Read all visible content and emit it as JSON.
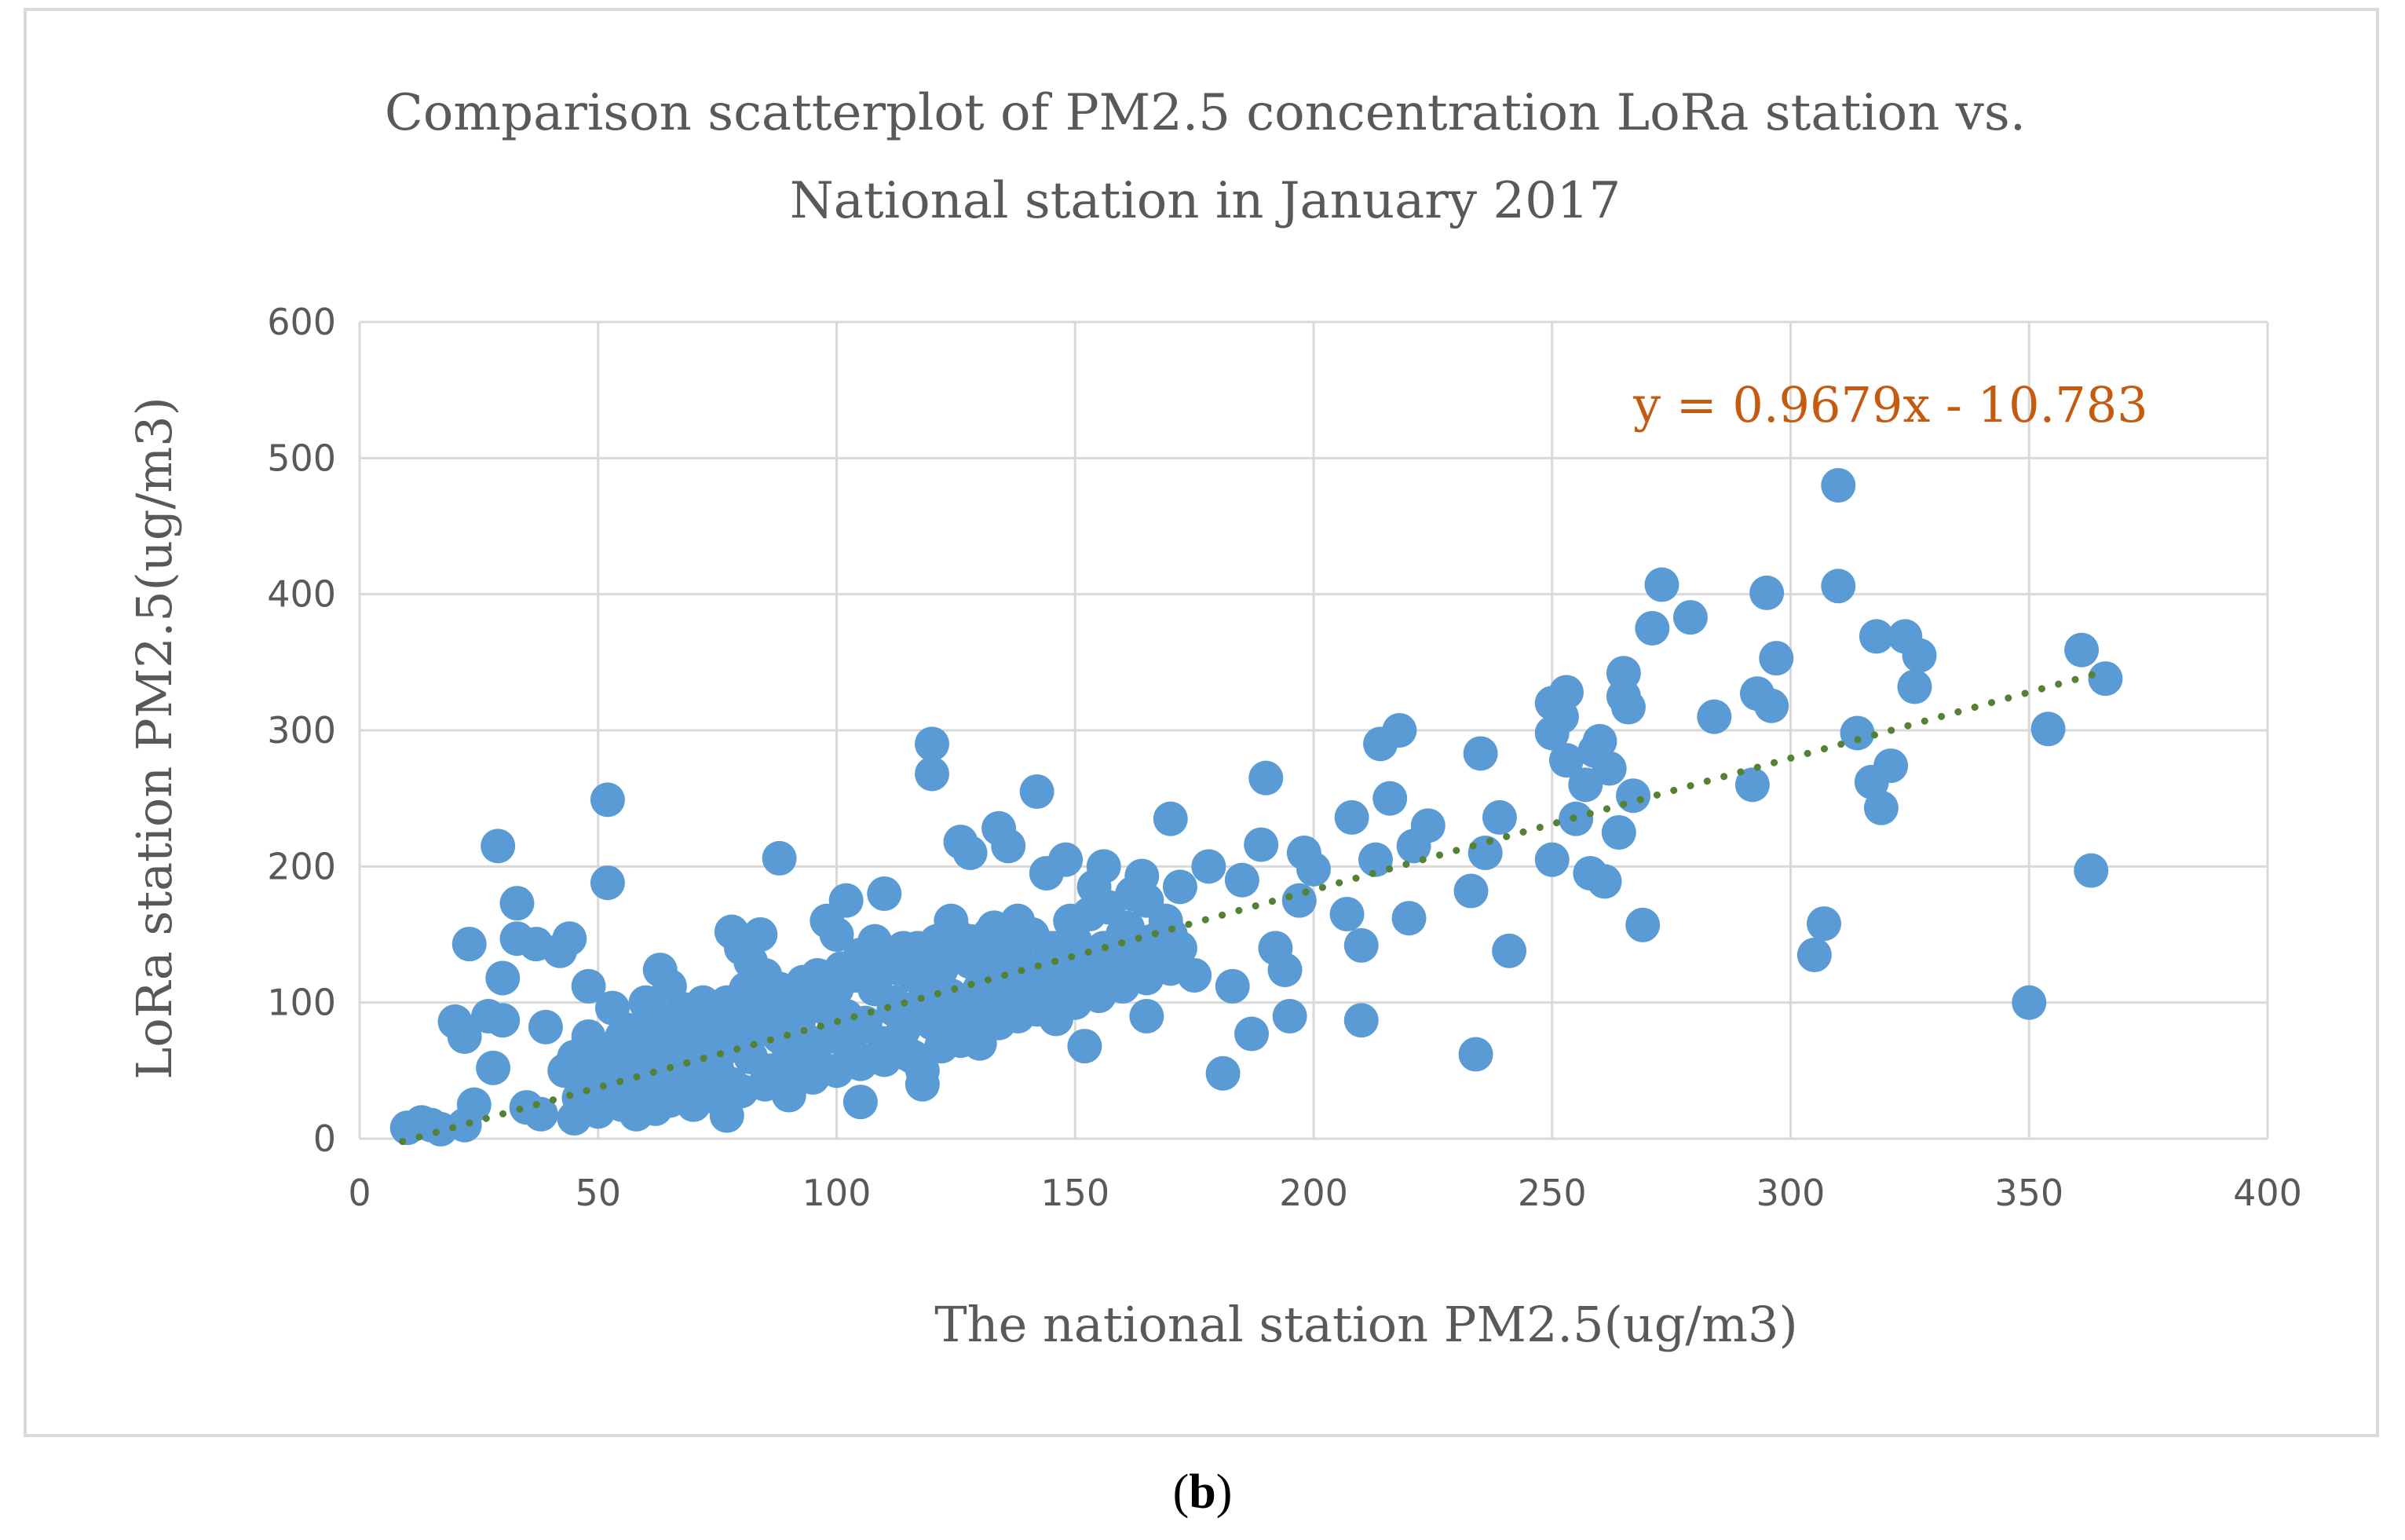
{
  "chart_data": {
    "type": "scatter",
    "title_lines": [
      "Comparison scatterplot of PM2.5 concentration LoRa station vs.",
      "National station in January 2017"
    ],
    "xlabel": "The national station PM2.5(ug/m3)",
    "ylabel": "LoRa station PM2.5(ug/m3)",
    "xlim": [
      0,
      400
    ],
    "ylim": [
      0,
      600
    ],
    "x_ticks": [
      "0",
      "50",
      "100",
      "150",
      "200",
      "250",
      "300",
      "350",
      "400"
    ],
    "y_ticks": [
      "0",
      "100",
      "200",
      "300",
      "400",
      "500",
      "600"
    ],
    "grid": true,
    "point_color": "#5b9bd5",
    "trendline": {
      "equation_label": "y = 0.9679x - 10.783",
      "slope": 0.9679,
      "intercept": -10.783,
      "x_range": [
        9,
        366
      ],
      "color": "#548235"
    },
    "points": [
      [
        10,
        8
      ],
      [
        13,
        12
      ],
      [
        15,
        10
      ],
      [
        17,
        7
      ],
      [
        22,
        10
      ],
      [
        24,
        25
      ],
      [
        20,
        86
      ],
      [
        22,
        75
      ],
      [
        23,
        143
      ],
      [
        27,
        90
      ],
      [
        28,
        52
      ],
      [
        29,
        215
      ],
      [
        30,
        118
      ],
      [
        30,
        87
      ],
      [
        33,
        173
      ],
      [
        33,
        147
      ],
      [
        35,
        23
      ],
      [
        37,
        143
      ],
      [
        38,
        18
      ],
      [
        39,
        82
      ],
      [
        42,
        138
      ],
      [
        43,
        50
      ],
      [
        44,
        147
      ],
      [
        45,
        15
      ],
      [
        48,
        112
      ],
      [
        50,
        30
      ],
      [
        52,
        249
      ],
      [
        52,
        188
      ],
      [
        53,
        96
      ],
      [
        55,
        75
      ],
      [
        57,
        40
      ],
      [
        60,
        65
      ],
      [
        62,
        90
      ],
      [
        63,
        124
      ],
      [
        65,
        112
      ],
      [
        66,
        55
      ],
      [
        68,
        30
      ],
      [
        70,
        95
      ],
      [
        72,
        70
      ],
      [
        75,
        50
      ],
      [
        77,
        17
      ],
      [
        78,
        152
      ],
      [
        80,
        140
      ],
      [
        82,
        130
      ],
      [
        84,
        150
      ],
      [
        86,
        80
      ],
      [
        88,
        206
      ],
      [
        90,
        42
      ],
      [
        92,
        95
      ],
      [
        94,
        60
      ],
      [
        96,
        120
      ],
      [
        98,
        160
      ],
      [
        100,
        150
      ],
      [
        102,
        175
      ],
      [
        104,
        80
      ],
      [
        105,
        27
      ],
      [
        108,
        145
      ],
      [
        110,
        180
      ],
      [
        112,
        100
      ],
      [
        114,
        140
      ],
      [
        116,
        60
      ],
      [
        118,
        40
      ],
      [
        120,
        290
      ],
      [
        120,
        268
      ],
      [
        122,
        110
      ],
      [
        124,
        160
      ],
      [
        126,
        218
      ],
      [
        128,
        210
      ],
      [
        130,
        70
      ],
      [
        132,
        150
      ],
      [
        134,
        228
      ],
      [
        136,
        215
      ],
      [
        138,
        160
      ],
      [
        140,
        100
      ],
      [
        142,
        255
      ],
      [
        144,
        195
      ],
      [
        146,
        140
      ],
      [
        148,
        205
      ],
      [
        150,
        120
      ],
      [
        152,
        68
      ],
      [
        154,
        185
      ],
      [
        156,
        200
      ],
      [
        158,
        130
      ],
      [
        160,
        150
      ],
      [
        162,
        180
      ],
      [
        164,
        193
      ],
      [
        165,
        90
      ],
      [
        168,
        140
      ],
      [
        170,
        235
      ],
      [
        172,
        185
      ],
      [
        175,
        120
      ],
      [
        178,
        200
      ],
      [
        181,
        48
      ],
      [
        183,
        112
      ],
      [
        185,
        190
      ],
      [
        187,
        77
      ],
      [
        189,
        216
      ],
      [
        190,
        265
      ],
      [
        192,
        140
      ],
      [
        194,
        124
      ],
      [
        195,
        90
      ],
      [
        197,
        175
      ],
      [
        198,
        210
      ],
      [
        200,
        198
      ],
      [
        207,
        165
      ],
      [
        208,
        236
      ],
      [
        210,
        142
      ],
      [
        210,
        87
      ],
      [
        213,
        205
      ],
      [
        214,
        290
      ],
      [
        216,
        250
      ],
      [
        218,
        300
      ],
      [
        220,
        162
      ],
      [
        221,
        215
      ],
      [
        224,
        230
      ],
      [
        233,
        182
      ],
      [
        234,
        62
      ],
      [
        235,
        283
      ],
      [
        236,
        210
      ],
      [
        239,
        236
      ],
      [
        241,
        138
      ],
      [
        250,
        320
      ],
      [
        250,
        298
      ],
      [
        250,
        205
      ],
      [
        252,
        310
      ],
      [
        253,
        328
      ],
      [
        253,
        278
      ],
      [
        255,
        235
      ],
      [
        257,
        260
      ],
      [
        258,
        195
      ],
      [
        259,
        285
      ],
      [
        260,
        292
      ],
      [
        261,
        189
      ],
      [
        262,
        272
      ],
      [
        264,
        225
      ],
      [
        265,
        342
      ],
      [
        265,
        325
      ],
      [
        266,
        317
      ],
      [
        267,
        252
      ],
      [
        269,
        157
      ],
      [
        271,
        375
      ],
      [
        273,
        407
      ],
      [
        279,
        383
      ],
      [
        284,
        310
      ],
      [
        292,
        260
      ],
      [
        293,
        327
      ],
      [
        295,
        401
      ],
      [
        296,
        318
      ],
      [
        297,
        353
      ],
      [
        305,
        135
      ],
      [
        307,
        158
      ],
      [
        310,
        480
      ],
      [
        310,
        406
      ],
      [
        314,
        298
      ],
      [
        317,
        262
      ],
      [
        318,
        369
      ],
      [
        319,
        243
      ],
      [
        321,
        274
      ],
      [
        324,
        369
      ],
      [
        326,
        332
      ],
      [
        327,
        355
      ],
      [
        350,
        100
      ],
      [
        354,
        301
      ],
      [
        361,
        359
      ],
      [
        363,
        197
      ],
      [
        366,
        338
      ],
      [
        45,
        60
      ],
      [
        48,
        75
      ],
      [
        50,
        55
      ],
      [
        52,
        45
      ],
      [
        54,
        65
      ],
      [
        56,
        80
      ],
      [
        58,
        35
      ],
      [
        60,
        50
      ],
      [
        62,
        40
      ],
      [
        64,
        70
      ],
      [
        66,
        85
      ],
      [
        68,
        60
      ],
      [
        70,
        45
      ],
      [
        72,
        55
      ],
      [
        74,
        80
      ],
      [
        76,
        65
      ],
      [
        78,
        40
      ],
      [
        80,
        70
      ],
      [
        82,
        60
      ],
      [
        84,
        90
      ],
      [
        86,
        50
      ],
      [
        88,
        75
      ],
      [
        90,
        65
      ],
      [
        92,
        85
      ],
      [
        94,
        55
      ],
      [
        96,
        70
      ],
      [
        98,
        95
      ],
      [
        100,
        75
      ],
      [
        102,
        90
      ],
      [
        104,
        60
      ],
      [
        106,
        85
      ],
      [
        108,
        110
      ],
      [
        110,
        70
      ],
      [
        112,
        95
      ],
      [
        114,
        80
      ],
      [
        116,
        120
      ],
      [
        118,
        100
      ],
      [
        120,
        85
      ],
      [
        122,
        125
      ],
      [
        124,
        105
      ],
      [
        126,
        90
      ],
      [
        128,
        130
      ],
      [
        130,
        110
      ],
      [
        132,
        95
      ],
      [
        134,
        120
      ],
      [
        136,
        105
      ],
      [
        138,
        130
      ],
      [
        140,
        115
      ],
      [
        142,
        125
      ],
      [
        144,
        110
      ],
      [
        146,
        135
      ],
      [
        148,
        120
      ],
      [
        150,
        145
      ],
      [
        152,
        130
      ],
      [
        154,
        110
      ],
      [
        156,
        140
      ],
      [
        158,
        125
      ],
      [
        160,
        150
      ],
      [
        162,
        135
      ],
      [
        164,
        120
      ],
      [
        166,
        145
      ],
      [
        168,
        130
      ],
      [
        170,
        150
      ],
      [
        172,
        140
      ],
      [
        50,
        20
      ],
      [
        55,
        25
      ],
      [
        58,
        18
      ],
      [
        62,
        22
      ],
      [
        65,
        28
      ],
      [
        70,
        25
      ],
      [
        75,
        30
      ],
      [
        80,
        35
      ],
      [
        85,
        40
      ],
      [
        90,
        32
      ],
      [
        95,
        45
      ],
      [
        100,
        50
      ],
      [
        105,
        55
      ],
      [
        110,
        58
      ],
      [
        115,
        62
      ],
      [
        118,
        50
      ],
      [
        122,
        68
      ],
      [
        126,
        72
      ],
      [
        130,
        78
      ],
      [
        134,
        85
      ],
      [
        138,
        90
      ],
      [
        142,
        95
      ],
      [
        146,
        88
      ],
      [
        150,
        100
      ],
      [
        155,
        105
      ],
      [
        160,
        112
      ],
      [
        165,
        118
      ],
      [
        170,
        125
      ],
      [
        46,
        30
      ],
      [
        49,
        45
      ],
      [
        53,
        55
      ],
      [
        57,
        65
      ],
      [
        61,
        75
      ],
      [
        65,
        40
      ],
      [
        69,
        80
      ],
      [
        73,
        90
      ],
      [
        77,
        100
      ],
      [
        81,
        110
      ],
      [
        85,
        120
      ],
      [
        89,
        100
      ],
      [
        93,
        115
      ],
      [
        97,
        105
      ],
      [
        101,
        125
      ],
      [
        105,
        135
      ],
      [
        109,
        130
      ],
      [
        113,
        125
      ],
      [
        117,
        140
      ],
      [
        121,
        145
      ],
      [
        125,
        150
      ],
      [
        129,
        140
      ],
      [
        133,
        155
      ],
      [
        137,
        145
      ],
      [
        141,
        150
      ],
      [
        145,
        140
      ],
      [
        149,
        160
      ],
      [
        153,
        165
      ],
      [
        157,
        170
      ],
      [
        161,
        155
      ],
      [
        165,
        175
      ],
      [
        169,
        160
      ],
      [
        60,
        100
      ],
      [
        64,
        85
      ],
      [
        68,
        95
      ],
      [
        72,
        100
      ],
      [
        76,
        90
      ],
      [
        80,
        85
      ],
      [
        84,
        100
      ],
      [
        88,
        110
      ],
      [
        92,
        100
      ],
      [
        96,
        115
      ],
      [
        100,
        110
      ],
      [
        104,
        120
      ],
      [
        108,
        115
      ],
      [
        112,
        130
      ],
      [
        116,
        125
      ],
      [
        120,
        135
      ],
      [
        124,
        140
      ],
      [
        128,
        145
      ],
      [
        132,
        135
      ],
      [
        136,
        150
      ]
    ]
  }
}
